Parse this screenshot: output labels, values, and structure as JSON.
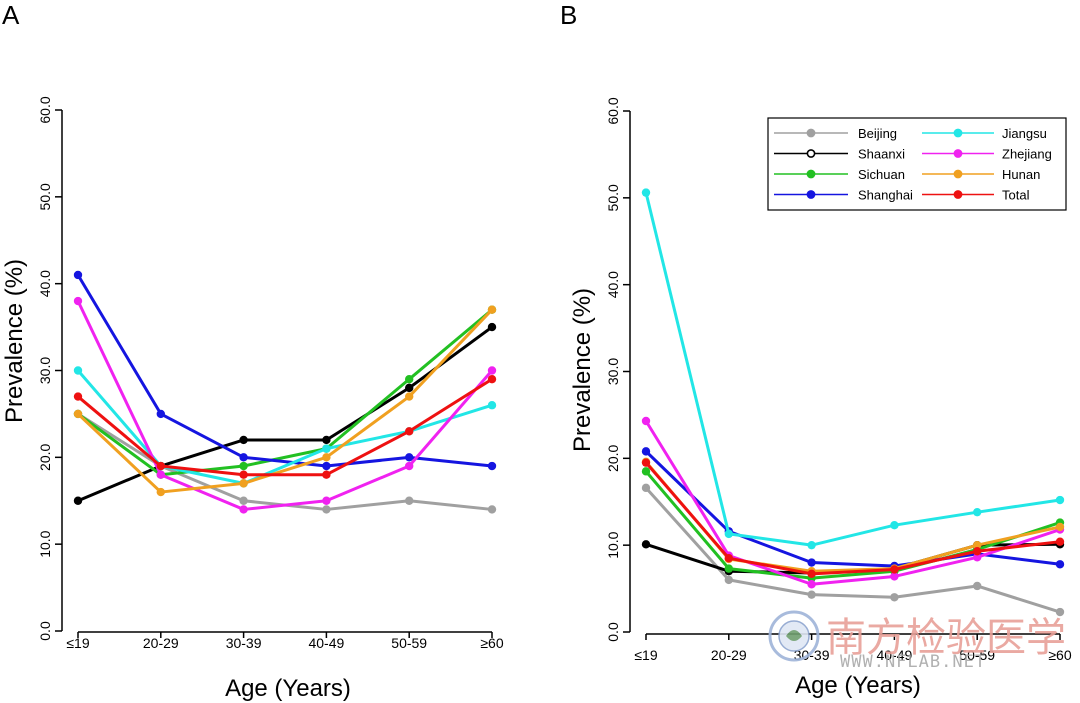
{
  "chart_data": [
    {
      "type": "line",
      "panel_label": "A",
      "categories": [
        "≤19",
        "20-29",
        "30-39",
        "40-49",
        "50-59",
        "≥60"
      ],
      "xlabel": "Age (Years)",
      "ylabel": "Prevalence (%)",
      "ylim": [
        0,
        60
      ],
      "yticks": [
        "0.0",
        "10.0",
        "20.0",
        "30.0",
        "40.0",
        "50.0",
        "60.0"
      ],
      "series": [
        {
          "name": "Beijing",
          "color": "#a0a0a0",
          "values": [
            25,
            19,
            15,
            14,
            15,
            14
          ]
        },
        {
          "name": "Shaanxi",
          "color": "#000000",
          "values": [
            15,
            19,
            22,
            22,
            28,
            35
          ]
        },
        {
          "name": "Sichuan",
          "color": "#22c022",
          "values": [
            25,
            18,
            19,
            21,
            29,
            37
          ]
        },
        {
          "name": "Shanghai",
          "color": "#1515e0",
          "values": [
            41,
            25,
            20,
            19,
            20,
            19
          ]
        },
        {
          "name": "Jiangsu",
          "color": "#22e6e6",
          "values": [
            30,
            19,
            17,
            21,
            23,
            26
          ]
        },
        {
          "name": "Zhejiang",
          "color": "#f022f0",
          "values": [
            38,
            18,
            14,
            15,
            19,
            30
          ]
        },
        {
          "name": "Hunan",
          "color": "#f0a020",
          "values": [
            25,
            16,
            17,
            20,
            27,
            37
          ]
        },
        {
          "name": "Total",
          "color": "#ee1111",
          "values": [
            27,
            19,
            18,
            18,
            23,
            29
          ]
        }
      ]
    },
    {
      "type": "line",
      "panel_label": "B",
      "categories": [
        "≤19",
        "20-29",
        "30-39",
        "40-49",
        "50-59",
        "≥60"
      ],
      "xlabel": "Age (Years)",
      "ylabel": "Prevalence (%)",
      "ylim": [
        0,
        60
      ],
      "yticks": [
        "0.0",
        "10.0",
        "20.0",
        "30.0",
        "40.0",
        "50.0",
        "60.0"
      ],
      "legend": "top-right",
      "series": [
        {
          "name": "Beijing",
          "color": "#a0a0a0",
          "values": [
            16.6,
            6.0,
            4.3,
            4.0,
            5.3,
            2.3
          ]
        },
        {
          "name": "Shaanxi",
          "color": "#000000",
          "values": [
            10.1,
            7.0,
            6.8,
            7.3,
            10.0,
            10.1
          ]
        },
        {
          "name": "Sichuan",
          "color": "#22c022",
          "values": [
            18.5,
            7.3,
            6.2,
            7.0,
            9.5,
            12.6
          ]
        },
        {
          "name": "Shanghai",
          "color": "#1515e0",
          "values": [
            20.8,
            11.6,
            8.0,
            7.6,
            9.0,
            7.8
          ]
        },
        {
          "name": "Jiangsu",
          "color": "#22e6e6",
          "values": [
            50.6,
            11.3,
            10.0,
            12.3,
            13.8,
            15.2
          ]
        },
        {
          "name": "Zhejiang",
          "color": "#f022f0",
          "values": [
            24.3,
            8.8,
            5.5,
            6.4,
            8.6,
            11.8
          ]
        },
        {
          "name": "Hunan",
          "color": "#f0a020",
          "values": [
            19.6,
            8.4,
            7.0,
            7.3,
            10.0,
            12.1
          ]
        },
        {
          "name": "Total",
          "color": "#ee1111",
          "values": [
            19.5,
            8.5,
            6.7,
            7.2,
            9.3,
            10.4
          ]
        }
      ]
    }
  ],
  "watermark": {
    "text": "南方检验医学",
    "url": "WWW.NFLAB.NET"
  }
}
